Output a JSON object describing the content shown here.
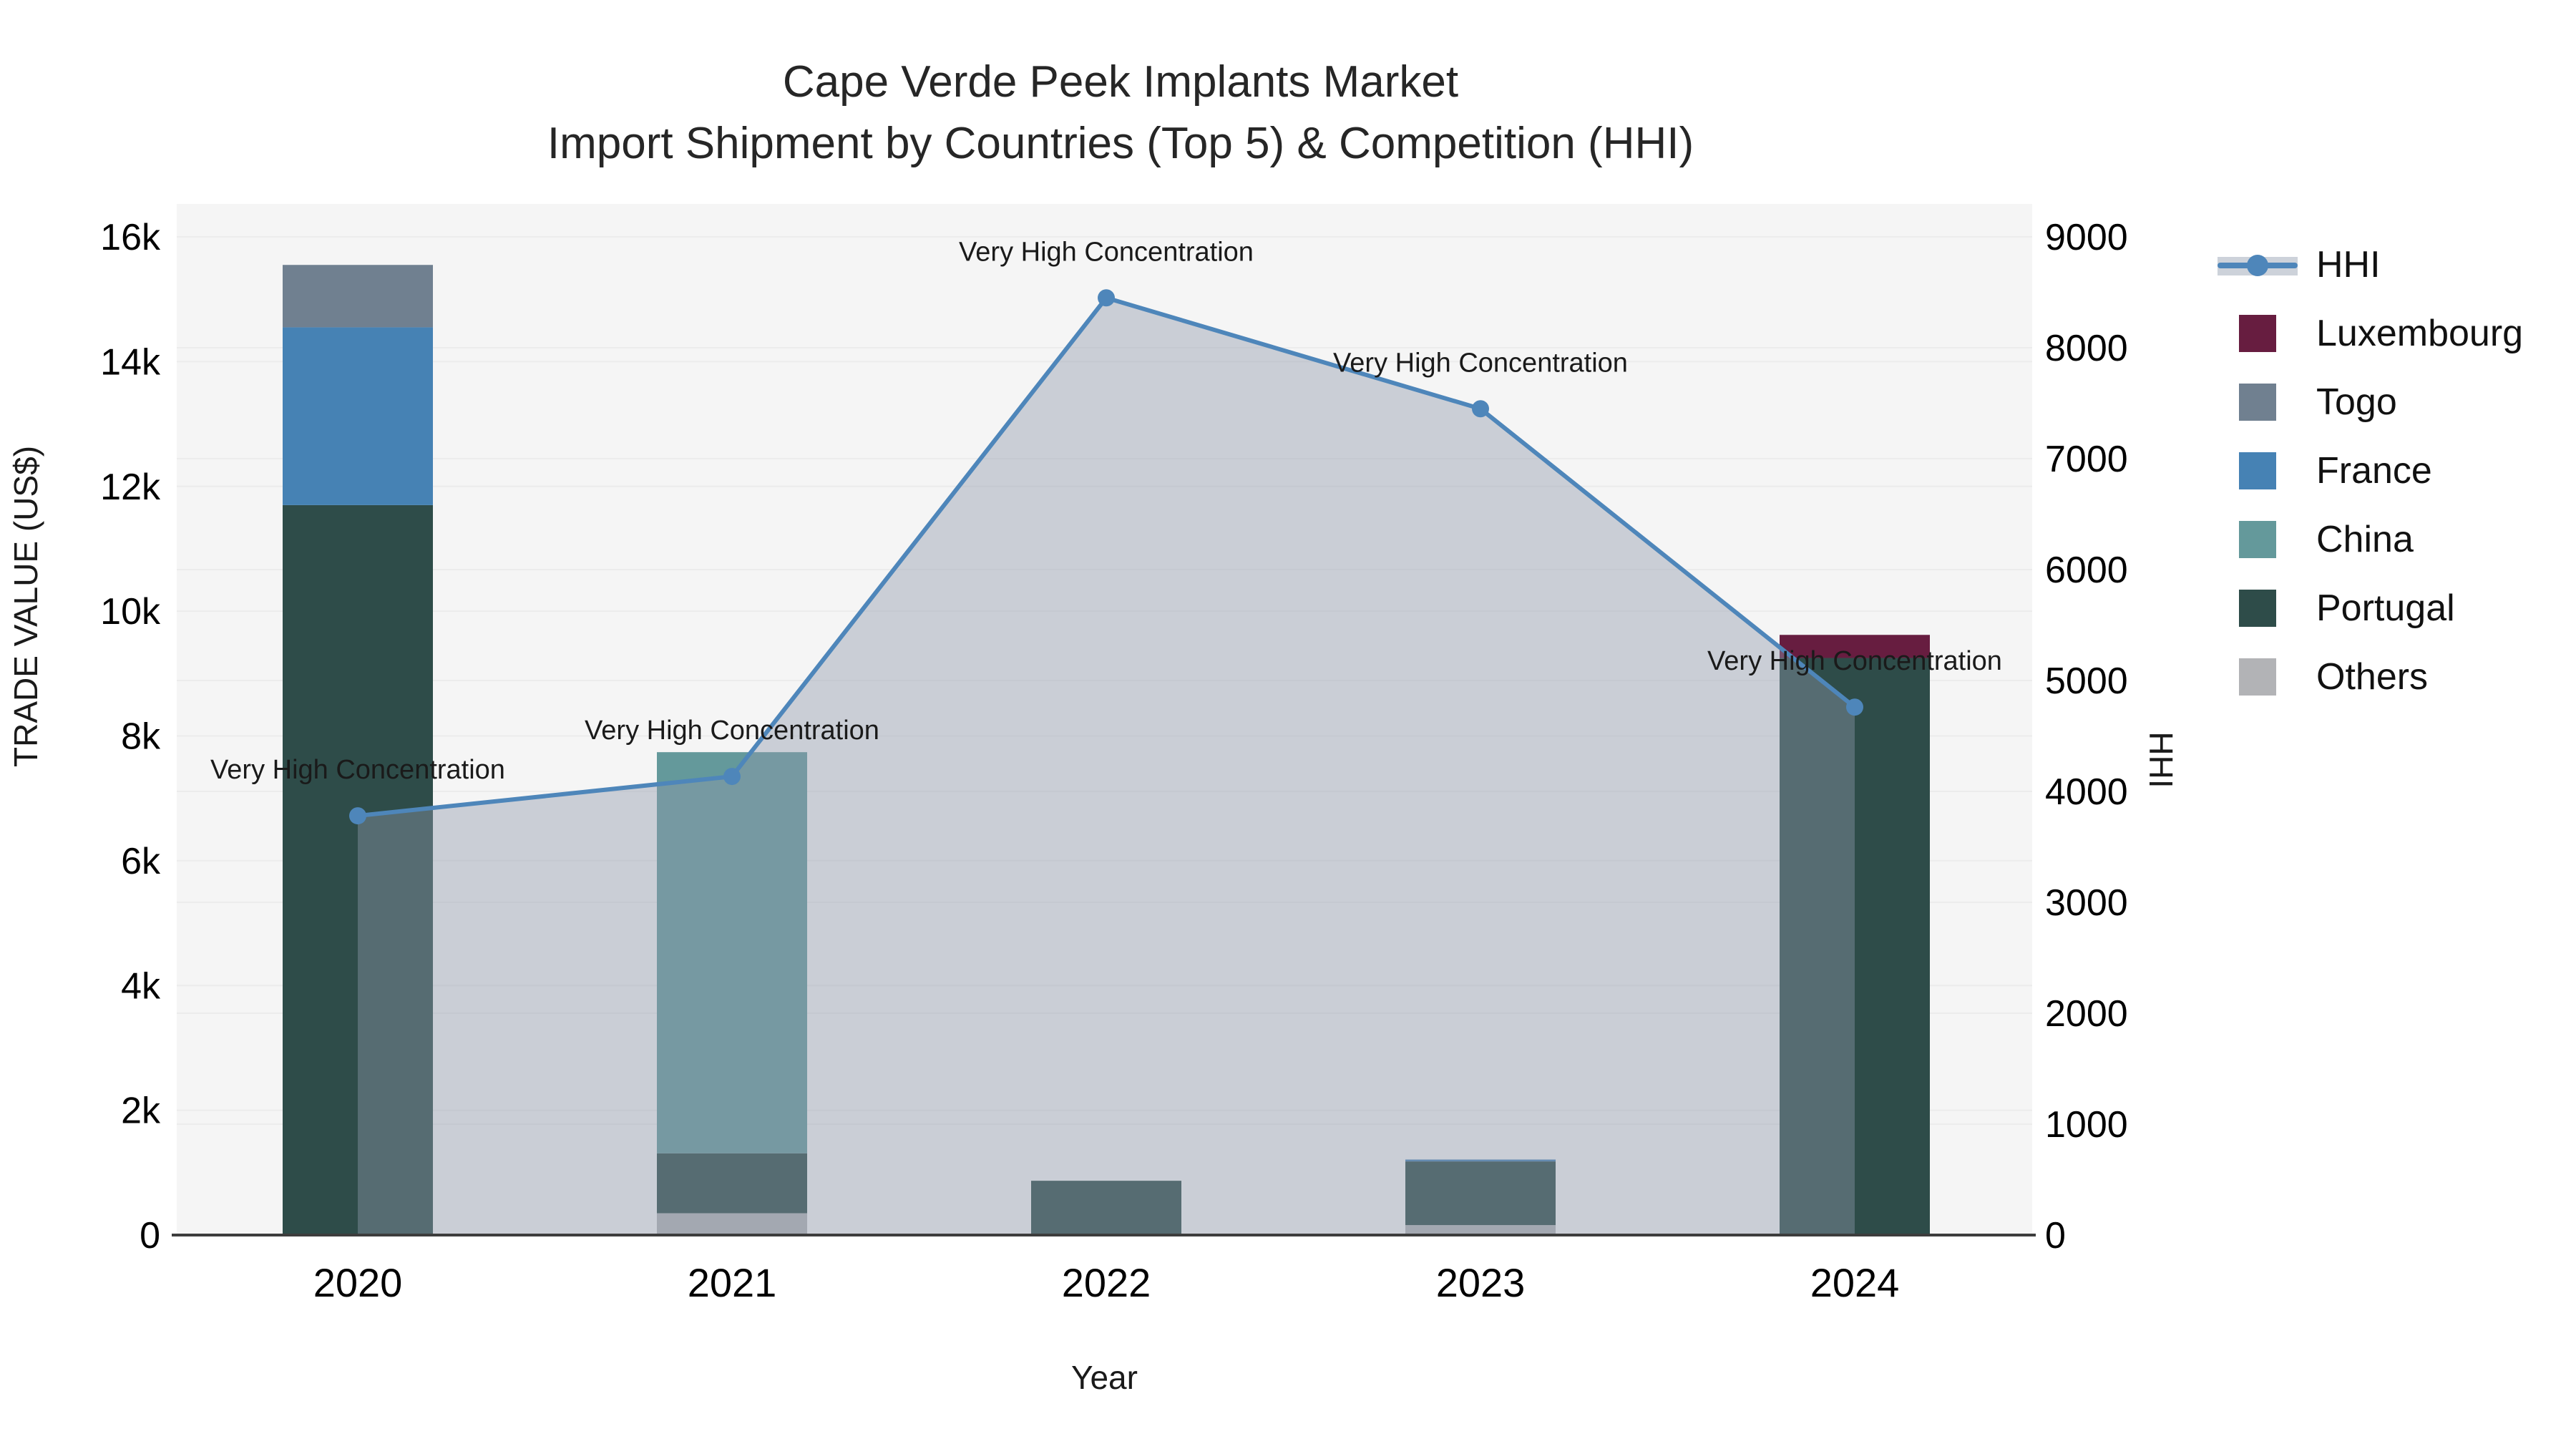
{
  "title": {
    "line1": "Cape Verde Peek Implants Market",
    "line2": "Import Shipment by Countries (Top 5) & Competition (HHI)"
  },
  "colors": {
    "page_bg": "#ffffff",
    "plot_bg": "#f5f5f5",
    "gridline": "#ececec",
    "axis_line": "#3d3d3d",
    "hhi_line": "#4e86ba",
    "hhi_area_fill": "rgba(144,153,171,0.42)",
    "luxembourg": "#671d40",
    "togo": "#708090",
    "france": "#4682b4",
    "china": "#64999b",
    "portugal": "#2e4c49",
    "others": "#b2b3b6"
  },
  "chart_data": {
    "type": "combo: stacked bar (trade value) + line with filled area (HHI)",
    "categories": [
      "2020",
      "2021",
      "2022",
      "2023",
      "2024"
    ],
    "stack_order_bottom_to_top": [
      "Others",
      "Portugal",
      "China",
      "France",
      "Togo",
      "Luxembourg"
    ],
    "series": [
      {
        "name": "Others",
        "color": "#b2b3b6",
        "values": [
          0,
          350,
          0,
          160,
          0
        ]
      },
      {
        "name": "Portugal",
        "color": "#2e4c49",
        "values": [
          11700,
          960,
          870,
          1020,
          9250
        ]
      },
      {
        "name": "China",
        "color": "#64999b",
        "values": [
          0,
          6430,
          0,
          0,
          0
        ]
      },
      {
        "name": "France",
        "color": "#4682b4",
        "values": [
          2850,
          0,
          0,
          30,
          0
        ]
      },
      {
        "name": "Togo",
        "color": "#708090",
        "values": [
          1000,
          0,
          0,
          0,
          0
        ]
      },
      {
        "name": "Luxembourg",
        "color": "#671d40",
        "values": [
          0,
          0,
          0,
          0,
          370
        ]
      }
    ],
    "bar_totals": [
      15550,
      7740,
      870,
      1210,
      9620
    ],
    "line": {
      "name": "HHI",
      "color": "#4e86ba",
      "area_fill": "rgba(144,153,171,0.42)",
      "values": [
        3780,
        4135,
        8450,
        7450,
        4760
      ]
    },
    "annotations": [
      {
        "category": "2020",
        "text": "Very High Concentration"
      },
      {
        "category": "2021",
        "text": "Very High Concentration"
      },
      {
        "category": "2022",
        "text": "Very High Concentration"
      },
      {
        "category": "2023",
        "text": "Very High Concentration"
      },
      {
        "category": "2024",
        "text": "Very High Concentration"
      }
    ],
    "axes": {
      "x": {
        "title": "Year",
        "tick_labels": [
          "2020",
          "2021",
          "2022",
          "2023",
          "2024"
        ]
      },
      "y_left": {
        "title": "TRADE VALUE (US$)",
        "min": 0,
        "max": 16000,
        "tick_step": 2000,
        "tick_labels": [
          "0",
          "2k",
          "4k",
          "6k",
          "8k",
          "10k",
          "12k",
          "14k",
          "16k"
        ]
      },
      "y_right": {
        "title": "HHI",
        "min": 0,
        "max": 9000,
        "tick_step": 1000,
        "tick_labels": [
          "0",
          "1000",
          "2000",
          "3000",
          "4000",
          "5000",
          "6000",
          "7000",
          "8000",
          "9000"
        ]
      }
    },
    "legend_position": "right"
  },
  "legend": {
    "items": [
      {
        "label": "HHI",
        "symbol": "line-marker",
        "color": "#4e86ba"
      },
      {
        "label": "Luxembourg",
        "symbol": "swatch",
        "color": "#671d40"
      },
      {
        "label": "Togo",
        "symbol": "swatch",
        "color": "#708090"
      },
      {
        "label": "France",
        "symbol": "swatch",
        "color": "#4682b4"
      },
      {
        "label": "China",
        "symbol": "swatch",
        "color": "#64999b"
      },
      {
        "label": "Portugal",
        "symbol": "swatch",
        "color": "#2e4c49"
      },
      {
        "label": "Others",
        "symbol": "swatch",
        "color": "#b2b3b6"
      }
    ]
  }
}
